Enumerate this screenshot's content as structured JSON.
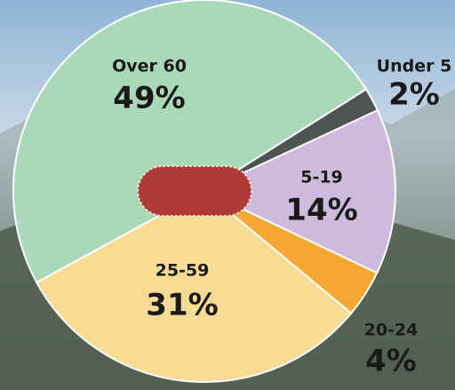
{
  "chart_data": {
    "type": "pie",
    "categories": [
      "Under 5",
      "5-19",
      "20-24",
      "25-59",
      "Over 60"
    ],
    "values": [
      2,
      14,
      4,
      31,
      49
    ],
    "value_labels": [
      "2%",
      "14%",
      "4%",
      "31%",
      "49%"
    ],
    "colors": [
      "#4f5354",
      "#cdbadd",
      "#f6a832",
      "#f8dc93",
      "#a9d9b9"
    ]
  }
}
